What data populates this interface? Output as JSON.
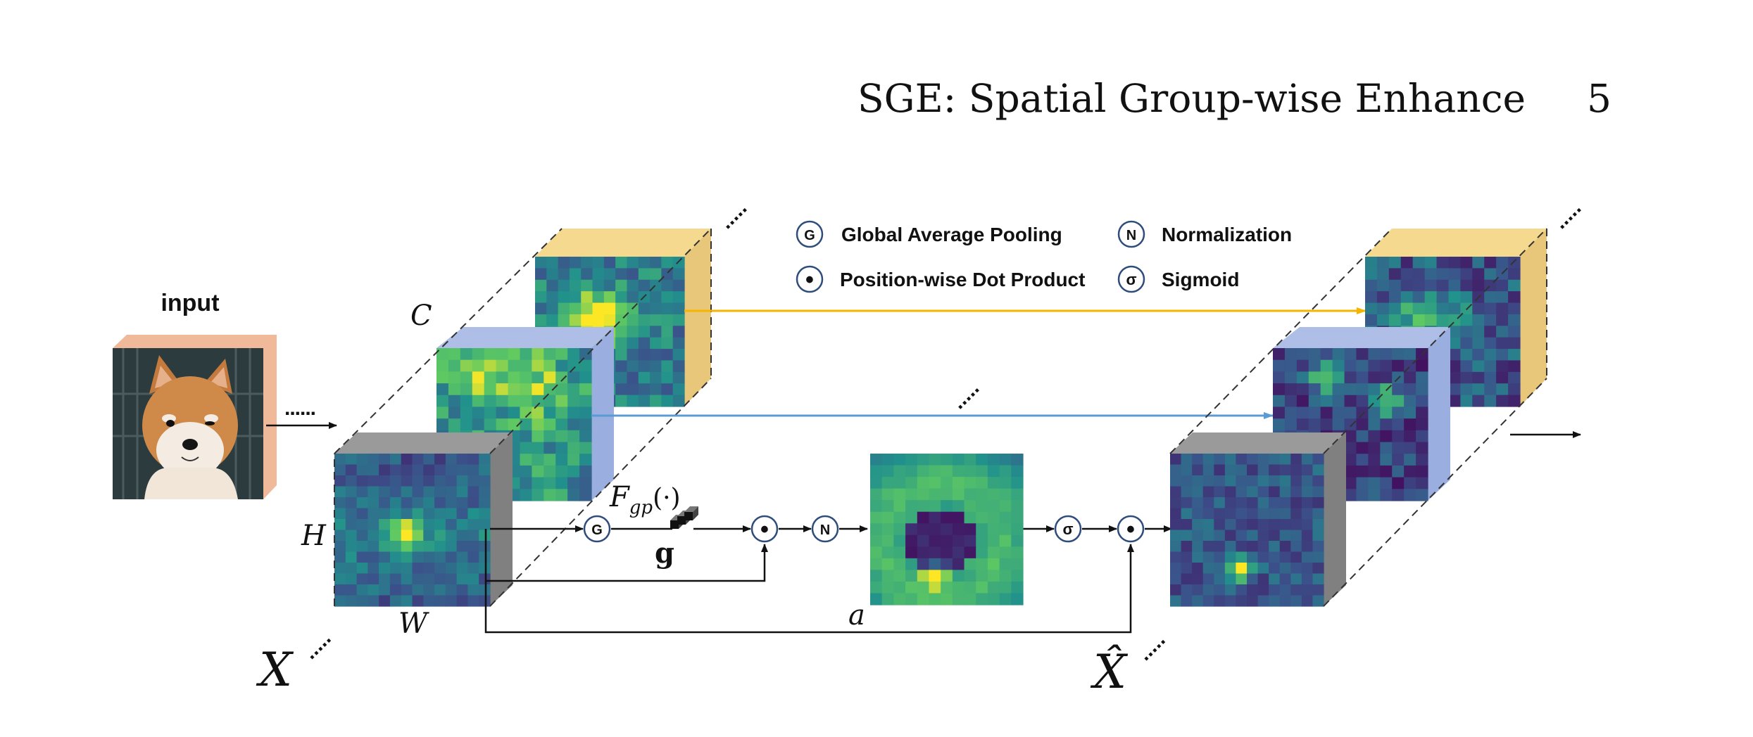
{
  "header": {
    "title": "SGE: Spatial Group-wise Enhance",
    "page_number": "5"
  },
  "legend": [
    {
      "symbol": "G",
      "label": "Global Average Pooling"
    },
    {
      "symbol": "N",
      "label": "Normalization"
    },
    {
      "symbol": "•",
      "label": "Position-wise Dot Product"
    },
    {
      "symbol": "σ",
      "label": "Sigmoid"
    }
  ],
  "diagram": {
    "input_label": "input",
    "dim_c": "C",
    "dim_h": "H",
    "dim_w": "W",
    "input_tensor_symbol": "X",
    "output_tensor_symbol": "X̂",
    "pooling_function": "F",
    "pooling_subscript": "gp",
    "pooling_arg": "(·)",
    "pooled_vector": "g",
    "attention_symbol": "a",
    "nodes": {
      "gap": "G",
      "dot1": "•",
      "norm": "N",
      "sigmoid": "σ",
      "dot2": "•"
    },
    "colors": {
      "front_face_side": "#808080",
      "mid_face_side": "#aebee6",
      "back_face_side": "#f4d98f",
      "input_frame": "#efb99a",
      "yellow_arrow": "#f5b400",
      "blue_arrow": "#5b9bd5",
      "viridis_dark": "#440154",
      "viridis_mid": "#21918c",
      "viridis_light": "#fde725"
    }
  }
}
